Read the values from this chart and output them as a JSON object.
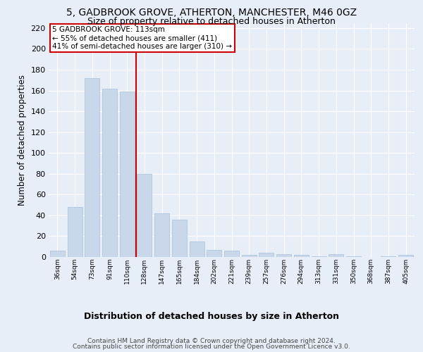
{
  "title1": "5, GADBROOK GROVE, ATHERTON, MANCHESTER, M46 0GZ",
  "title2": "Size of property relative to detached houses in Atherton",
  "xlabel": "Distribution of detached houses by size in Atherton",
  "ylabel": "Number of detached properties",
  "footer1": "Contains HM Land Registry data © Crown copyright and database right 2024.",
  "footer2": "Contains public sector information licensed under the Open Government Licence v3.0.",
  "bar_labels": [
    "36sqm",
    "54sqm",
    "73sqm",
    "91sqm",
    "110sqm",
    "128sqm",
    "147sqm",
    "165sqm",
    "184sqm",
    "202sqm",
    "221sqm",
    "239sqm",
    "257sqm",
    "276sqm",
    "294sqm",
    "313sqm",
    "331sqm",
    "350sqm",
    "368sqm",
    "387sqm",
    "405sqm"
  ],
  "bar_values": [
    6,
    48,
    172,
    162,
    159,
    80,
    42,
    36,
    15,
    7,
    6,
    2,
    4,
    3,
    2,
    1,
    3,
    1,
    0,
    1,
    2
  ],
  "bar_color": "#c8d8ea",
  "bar_edgecolor": "#a8c0d8",
  "annotation_text": "5 GADBROOK GROVE: 113sqm\n← 55% of detached houses are smaller (411)\n41% of semi-detached houses are larger (310) →",
  "vline_x_index": 4.5,
  "vline_color": "#cc0000",
  "annotation_box_color": "#ffffff",
  "annotation_box_edgecolor": "#cc0000",
  "ylim": [
    0,
    225
  ],
  "yticks": [
    0,
    20,
    40,
    60,
    80,
    100,
    120,
    140,
    160,
    180,
    200,
    220
  ],
  "background_color": "#e8eef8",
  "plot_background": "#e8eef8",
  "grid_color": "#ffffff",
  "title1_fontsize": 10,
  "title2_fontsize": 9,
  "xlabel_fontsize": 9,
  "ylabel_fontsize": 8.5,
  "footer_fontsize": 6.5
}
